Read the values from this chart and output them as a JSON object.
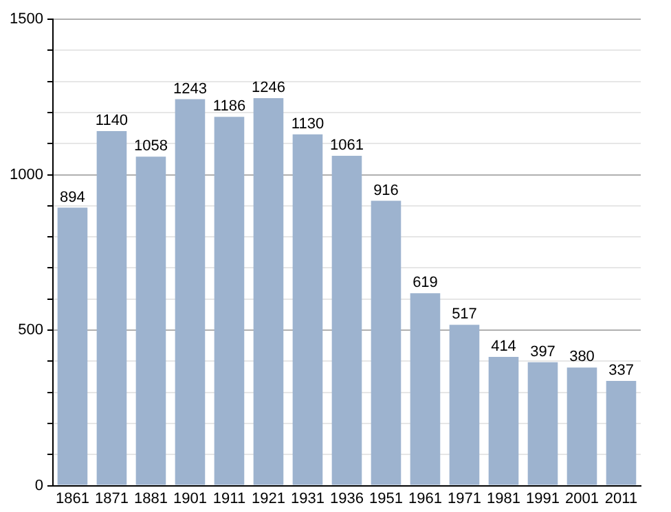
{
  "chart_data": {
    "type": "bar",
    "categories": [
      "1861",
      "1871",
      "1881",
      "1901",
      "1911",
      "1921",
      "1931",
      "1936",
      "1951",
      "1961",
      "1971",
      "1981",
      "1991",
      "2001",
      "2011"
    ],
    "values": [
      894,
      1140,
      1058,
      1243,
      1186,
      1246,
      1130,
      1061,
      916,
      619,
      517,
      414,
      397,
      380,
      337
    ],
    "color": "#9db3cf",
    "ylim": [
      0,
      1500
    ],
    "yticks": [
      0,
      {
        "value": 100,
        "label": null
      },
      {
        "value": 200,
        "label": null
      },
      {
        "value": 300,
        "label": null
      },
      {
        "value": 400,
        "label": null
      },
      500,
      {
        "value": 600,
        "label": null
      },
      {
        "value": 700,
        "label": null
      },
      {
        "value": 800,
        "label": null
      },
      {
        "value": 900,
        "label": null
      },
      1000,
      {
        "value": 1100,
        "label": null
      },
      {
        "value": 1200,
        "label": null
      },
      {
        "value": 1300,
        "label": null
      },
      {
        "value": 1400,
        "label": null
      },
      1500
    ],
    "grid": "y",
    "data_labels": true
  }
}
